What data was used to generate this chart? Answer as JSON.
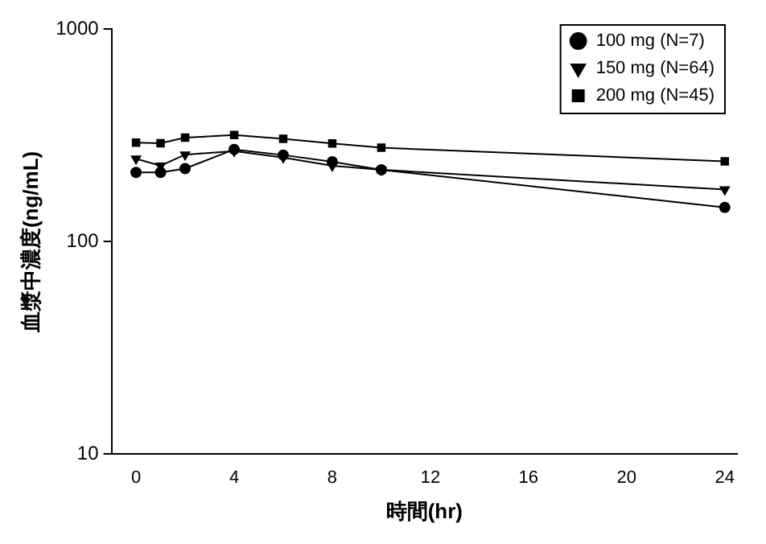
{
  "chart_data": {
    "type": "line",
    "xlabel": "時間(hr)",
    "ylabel": "血漿中濃度(ng/mL)",
    "x": [
      0,
      1,
      2,
      4,
      6,
      8,
      10,
      24
    ],
    "series": [
      {
        "name": "100 mg (N=7)",
        "color": "#000000",
        "marker": "circle",
        "values": [
          212,
          212,
          221,
          272,
          256,
          238,
          218,
          145
        ]
      },
      {
        "name": "150 mg (N=64)",
        "color": "#000000",
        "marker": "triangle",
        "values": [
          246,
          228,
          257,
          267,
          249,
          228,
          218,
          176
        ]
      },
      {
        "name": "200 mg (N=45)",
        "color": "#000000",
        "marker": "square",
        "values": [
          293,
          291,
          309,
          318,
          305,
          290,
          277,
          239
        ]
      }
    ],
    "log": "y",
    "xlim": [
      -1,
      24.5
    ],
    "xticks": [
      0,
      4,
      8,
      12,
      16,
      20,
      24
    ],
    "ylim": [
      10,
      1000
    ],
    "yticks": [
      10,
      100,
      1000
    ],
    "grid": false,
    "legend": "top right"
  }
}
